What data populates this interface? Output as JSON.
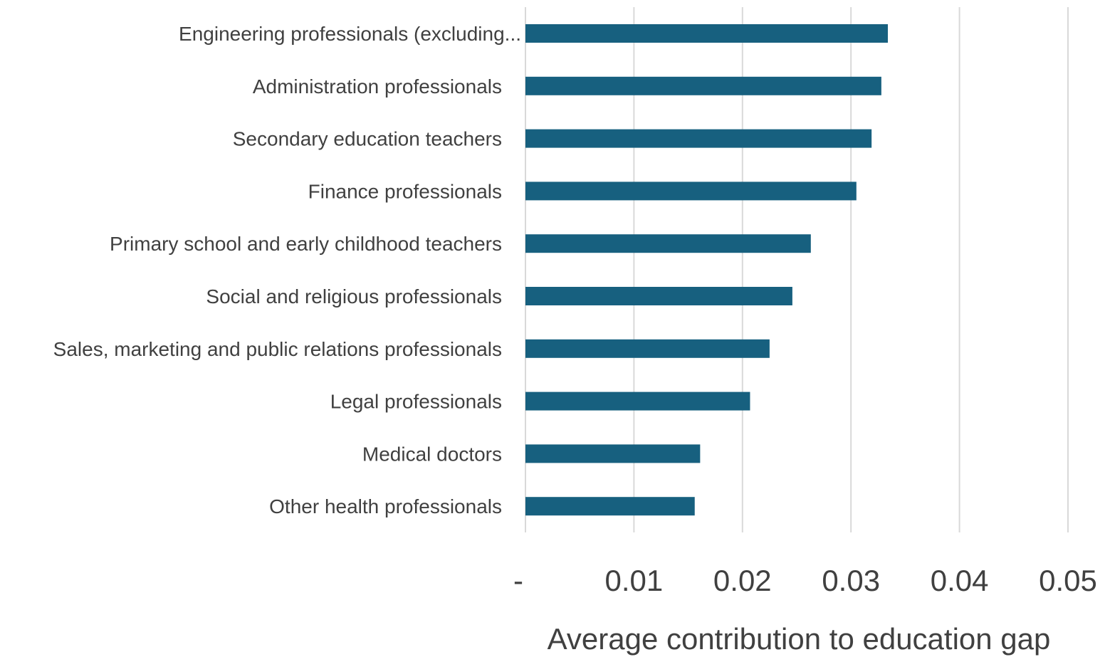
{
  "chart_data": {
    "type": "bar",
    "orientation": "horizontal",
    "categories": [
      "Engineering professionals (excluding...",
      "Administration professionals",
      "Secondary education teachers",
      "Finance professionals",
      "Primary school and early childhood teachers",
      "Social and religious professionals",
      "Sales, marketing and public relations professionals",
      "Legal professionals",
      "Medical doctors",
      "Other health professionals"
    ],
    "values": [
      0.0334,
      0.0328,
      0.0319,
      0.0305,
      0.0263,
      0.0246,
      0.0225,
      0.0207,
      0.0161,
      0.0156
    ],
    "title": "",
    "xlabel": "Average contribution to education gap",
    "ylabel": "",
    "xlim": [
      0,
      0.05
    ],
    "x_ticks": [
      0,
      0.01,
      0.02,
      0.03,
      0.04,
      0.05
    ],
    "x_tick_labels": [
      "-",
      "0.01",
      "0.02",
      "0.03",
      "0.04",
      "0.05"
    ],
    "grid": "vertical",
    "legend": "none",
    "colors": {
      "bar": "#17607f",
      "grid": "#d9d9d9",
      "text": "#404040"
    }
  }
}
